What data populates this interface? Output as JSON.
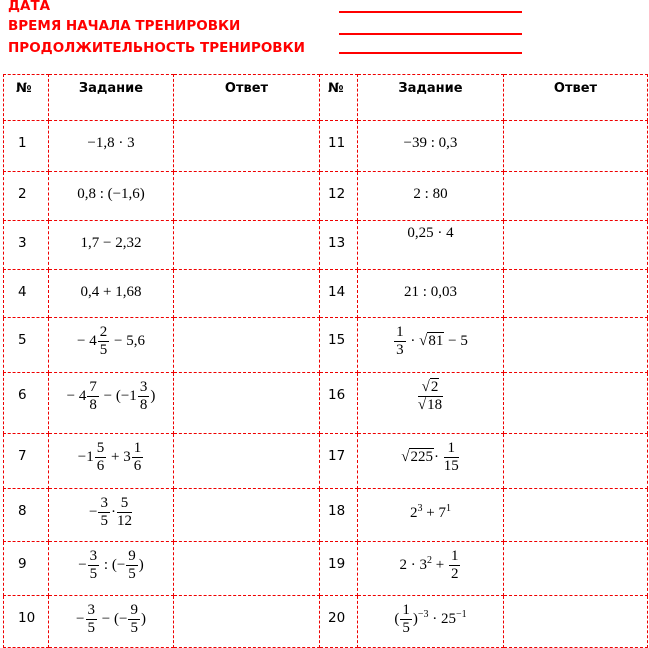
{
  "header": {
    "date_label": "ДАТА",
    "start_time_label": "ВРЕМЯ НАЧАЛА ТРЕНИРОВКИ",
    "duration_label": "ПРОДОЛЖИТЕЛЬНОСТЬ ТРЕНИРОВКИ"
  },
  "table": {
    "columns": [
      "№",
      "Задание",
      "Ответ",
      "№",
      "Задание",
      "Ответ"
    ],
    "border_color": "#ee0000",
    "rows": [
      {
        "left": {
          "num": "1",
          "expr": [
            "−1,8 · 3"
          ]
        },
        "right": {
          "num": "11",
          "expr": [
            "−39 : 0,3"
          ]
        }
      },
      {
        "left": {
          "num": "2",
          "expr": [
            "0,8 : (−1,6)"
          ]
        },
        "right": {
          "num": "12",
          "expr": [
            "2 : 80"
          ]
        }
      },
      {
        "left": {
          "num": "3",
          "expr": [
            "1,7 − 2,32"
          ]
        },
        "right": {
          "num": "13",
          "expr": [
            "0,25  · 4"
          ]
        }
      },
      {
        "left": {
          "num": "4",
          "expr": [
            "0,4 + 1,68"
          ]
        },
        "right": {
          "num": "14",
          "expr": [
            "21 : 0,03"
          ]
        }
      },
      {
        "left": {
          "num": "5",
          "expr": [
            "− 4",
            {
              "f": [
                "2",
                "5"
              ]
            },
            " − 5,6"
          ]
        },
        "right": {
          "num": "15",
          "expr": [
            {
              "f": [
                "1",
                "3"
              ]
            },
            " · ",
            {
              "r": "81"
            },
            " − 5"
          ]
        }
      },
      {
        "left": {
          "num": "6",
          "expr": [
            "− 4",
            {
              "f": [
                "7",
                "8"
              ]
            },
            " − (−1",
            {
              "f": [
                "3",
                "8"
              ]
            },
            ")"
          ]
        },
        "right": {
          "num": "16",
          "expr": [
            {
              "f": [
                {
                  "r": "2"
                },
                {
                  "r": "18"
                }
              ]
            }
          ]
        }
      },
      {
        "left": {
          "num": "7",
          "expr": [
            "−1",
            {
              "f": [
                "5",
                "6"
              ]
            },
            " + 3",
            {
              "f": [
                "1",
                "6"
              ]
            }
          ]
        },
        "right": {
          "num": "17",
          "expr": [
            {
              "r": "225"
            },
            "· ",
            {
              "f": [
                "1",
                "15"
              ]
            }
          ]
        }
      },
      {
        "left": {
          "num": "8",
          "expr": [
            "−",
            {
              "f": [
                "3",
                "5"
              ]
            },
            "·",
            {
              "f": [
                "5",
                "12"
              ]
            }
          ]
        },
        "right": {
          "num": "18",
          "expr": [
            "2",
            {
              "p": "3"
            },
            " + 7",
            {
              "p": "1"
            }
          ]
        }
      },
      {
        "left": {
          "num": "9",
          "expr": [
            "−",
            {
              "f": [
                "3",
                "5"
              ]
            },
            " : (−",
            {
              "f": [
                "9",
                "5"
              ]
            },
            ")"
          ]
        },
        "right": {
          "num": "19",
          "expr": [
            "2 · 3",
            {
              "p": "2"
            },
            " + ",
            {
              "f": [
                "1",
                "2"
              ]
            }
          ]
        }
      },
      {
        "left": {
          "num": "10",
          "expr": [
            "−",
            {
              "f": [
                "3",
                "5"
              ]
            },
            " − (−",
            {
              "f": [
                "9",
                "5"
              ]
            },
            ")"
          ]
        },
        "right": {
          "num": "20",
          "expr": [
            "(",
            {
              "f": [
                "1",
                "5"
              ]
            },
            ")",
            {
              "p": "−3"
            },
            " · 25",
            {
              "p": "−1"
            }
          ]
        }
      }
    ]
  }
}
